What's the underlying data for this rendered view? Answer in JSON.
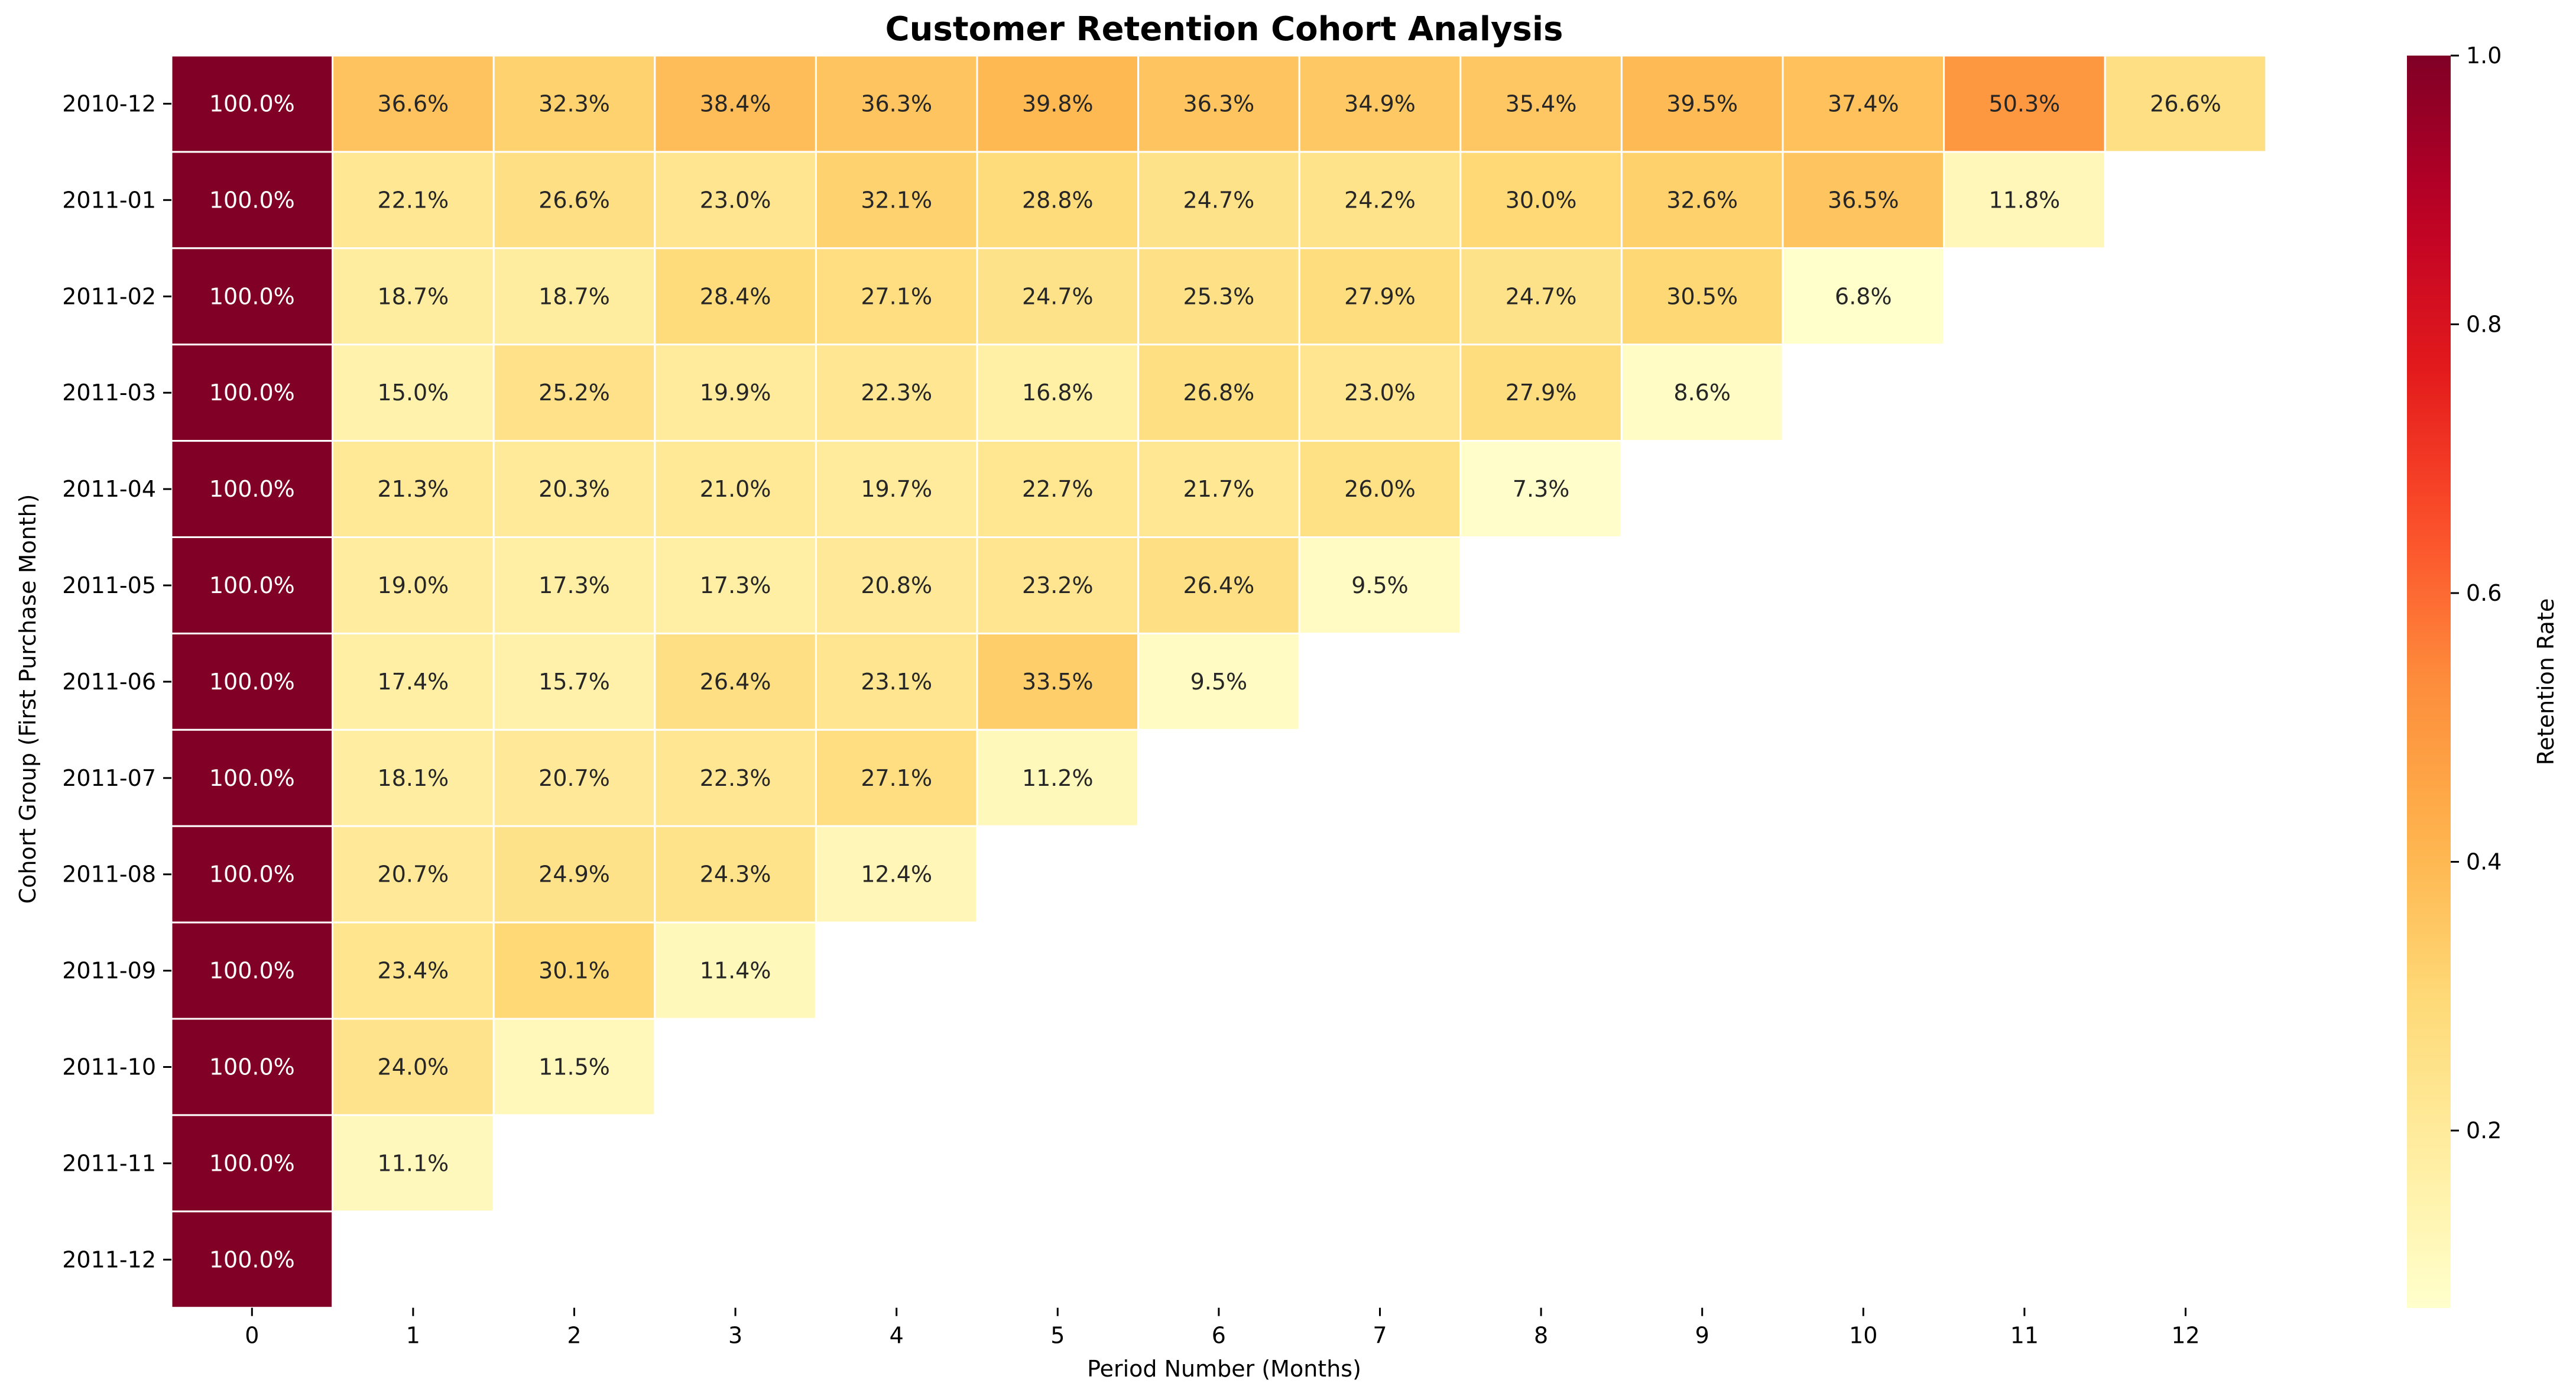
{
  "chart_data": {
    "type": "heatmap",
    "title": "Customer Retention Cohort Analysis",
    "xlabel": "Period Number (Months)",
    "ylabel": "Cohort Group (First Purchase Month)",
    "x": [
      "0",
      "1",
      "2",
      "3",
      "4",
      "5",
      "6",
      "7",
      "8",
      "9",
      "10",
      "11",
      "12"
    ],
    "y": [
      "2010-12",
      "2011-01",
      "2011-02",
      "2011-03",
      "2011-04",
      "2011-05",
      "2011-06",
      "2011-07",
      "2011-08",
      "2011-09",
      "2011-10",
      "2011-11",
      "2011-12"
    ],
    "values": [
      [
        1.0,
        0.366,
        0.323,
        0.384,
        0.363,
        0.398,
        0.363,
        0.349,
        0.354,
        0.395,
        0.374,
        0.503,
        0.266
      ],
      [
        1.0,
        0.221,
        0.266,
        0.23,
        0.321,
        0.288,
        0.247,
        0.242,
        0.3,
        0.326,
        0.365,
        0.118
      ],
      [
        1.0,
        0.187,
        0.187,
        0.284,
        0.271,
        0.247,
        0.253,
        0.279,
        0.247,
        0.305,
        0.068
      ],
      [
        1.0,
        0.15,
        0.252,
        0.199,
        0.223,
        0.168,
        0.268,
        0.23,
        0.279,
        0.086
      ],
      [
        1.0,
        0.213,
        0.203,
        0.21,
        0.197,
        0.227,
        0.217,
        0.26,
        0.073
      ],
      [
        1.0,
        0.19,
        0.173,
        0.173,
        0.208,
        0.232,
        0.264,
        0.095
      ],
      [
        1.0,
        0.174,
        0.157,
        0.264,
        0.231,
        0.335,
        0.095
      ],
      [
        1.0,
        0.181,
        0.207,
        0.223,
        0.271,
        0.112
      ],
      [
        1.0,
        0.207,
        0.249,
        0.243,
        0.124
      ],
      [
        1.0,
        0.234,
        0.301,
        0.114
      ],
      [
        1.0,
        0.24,
        0.115
      ],
      [
        1.0,
        0.111
      ],
      [
        1.0
      ]
    ],
    "value_format": "percent_1dp",
    "colorbar": {
      "label": "Retention Rate",
      "range": [
        0.068,
        1.0
      ],
      "ticks": [
        "0.2",
        "0.4",
        "0.6",
        "0.8",
        "1.0"
      ],
      "tick_values": [
        0.2,
        0.4,
        0.6,
        0.8,
        1.0
      ],
      "colormap": "YlOrRd"
    },
    "grid": false
  }
}
